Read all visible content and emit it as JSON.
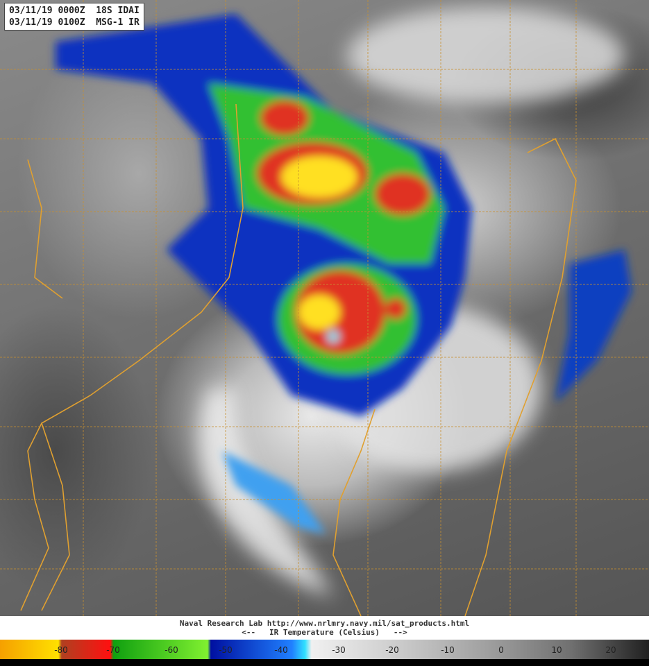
{
  "header": {
    "line1": "03/11/19 0000Z  18S IDAI",
    "line2": "03/11/19 0100Z  MSG-1 IR"
  },
  "caption": {
    "line1": "Naval Research Lab http://www.nrlmry.navy.mil/sat_products.html",
    "line2": "<--   IR Temperature (Celsius)   -->"
  },
  "colorbar": {
    "ticks": [
      "-80",
      "-70",
      "-60",
      "-50",
      "-40",
      "-30",
      "-20",
      "-10",
      "0",
      "10",
      "20"
    ],
    "colors": {
      "coldest": "#f5a000",
      "yellow": "#ffe000",
      "red": "#ff1010",
      "green": "#10a010",
      "blue": "#0010a0",
      "cyan": "#30e0ff",
      "warmest": "#202020"
    }
  },
  "colors": {
    "coastline": "#e0a030",
    "grid": "#c89030"
  }
}
